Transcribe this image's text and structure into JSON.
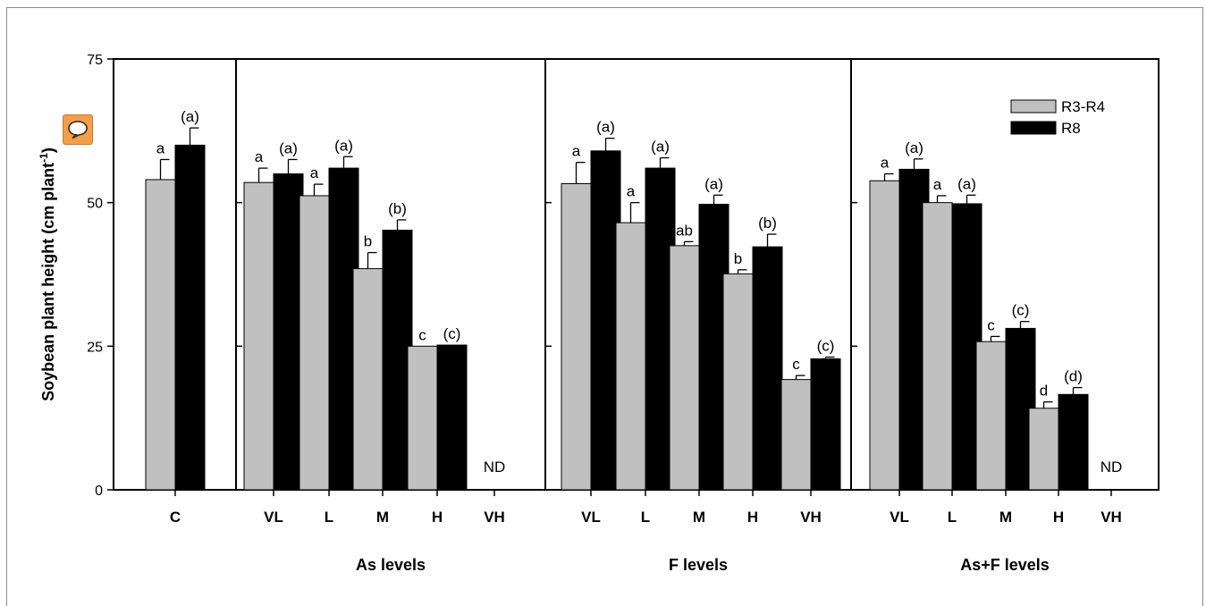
{
  "chart_data": {
    "type": "bar",
    "ylabel": "Soybean plant height (cm plant",
    "ylabel_sup": "-1",
    "ylabel_close": ")",
    "ylim": [
      0,
      75
    ],
    "yticks": [
      0,
      25,
      50,
      75
    ],
    "grid": false,
    "legend_position": "top-right",
    "legend": [
      {
        "name": "R3-R4",
        "color": "#c0c0c0"
      },
      {
        "name": "R8",
        "color": "#000000"
      }
    ],
    "panels": [
      {
        "group_label": "",
        "categories": [
          "C"
        ],
        "series": [
          {
            "name": "R3-R4",
            "values": [
              54
            ],
            "errors": [
              3.5
            ],
            "labels": [
              "a"
            ]
          },
          {
            "name": "R8",
            "values": [
              60
            ],
            "errors": [
              3
            ],
            "labels": [
              "(a)"
            ]
          }
        ]
      },
      {
        "group_label": "As levels",
        "categories": [
          "VL",
          "L",
          "M",
          "H",
          "VH"
        ],
        "series": [
          {
            "name": "R3-R4",
            "values": [
              53.5,
              51.2,
              38.5,
              25,
              null
            ],
            "errors": [
              2.5,
              2,
              2.8,
              0,
              null
            ],
            "labels": [
              "a",
              "a",
              "b",
              "c",
              ""
            ]
          },
          {
            "name": "R8",
            "values": [
              55,
              56,
              45.2,
              25.2,
              null
            ],
            "errors": [
              2.5,
              2,
              1.8,
              0,
              null
            ],
            "labels": [
              "(a)",
              "(a)",
              "(b)",
              "(c)",
              ""
            ]
          }
        ],
        "nd_label": "ND"
      },
      {
        "group_label": "F levels",
        "categories": [
          "VL",
          "L",
          "M",
          "H",
          "VH"
        ],
        "series": [
          {
            "name": "R3-R4",
            "values": [
              53.3,
              46.5,
              42.5,
              37.6,
              19.2
            ],
            "errors": [
              3.7,
              3.5,
              0.7,
              0.7,
              0.7
            ],
            "labels": [
              "a",
              "a",
              "ab",
              "b",
              "c"
            ]
          },
          {
            "name": "R8",
            "values": [
              59,
              56,
              49.7,
              42.3,
              22.8
            ],
            "errors": [
              2.2,
              1.8,
              1.6,
              2.2,
              0.3
            ],
            "labels": [
              "(a)",
              "(a)",
              "(a)",
              "(b)",
              "(c)"
            ]
          }
        ]
      },
      {
        "group_label": "As+F levels",
        "categories": [
          "VL",
          "L",
          "M",
          "H",
          "VH"
        ],
        "series": [
          {
            "name": "R3-R4",
            "values": [
              53.8,
              50,
              25.8,
              14.2,
              null
            ],
            "errors": [
              1.2,
              1.2,
              0.9,
              1.1,
              null
            ],
            "labels": [
              "a",
              "a",
              "c",
              "d",
              ""
            ]
          },
          {
            "name": "R8",
            "values": [
              55.8,
              49.8,
              28.1,
              16.6,
              null
            ],
            "errors": [
              1.8,
              1.5,
              1.2,
              1.2,
              null
            ],
            "labels": [
              "(a)",
              "(a)",
              "(c)",
              "(d)",
              ""
            ]
          }
        ],
        "nd_label": "ND"
      }
    ]
  },
  "comment_button": {
    "icon": "speech-bubble-icon",
    "color": "#f0a04a"
  }
}
